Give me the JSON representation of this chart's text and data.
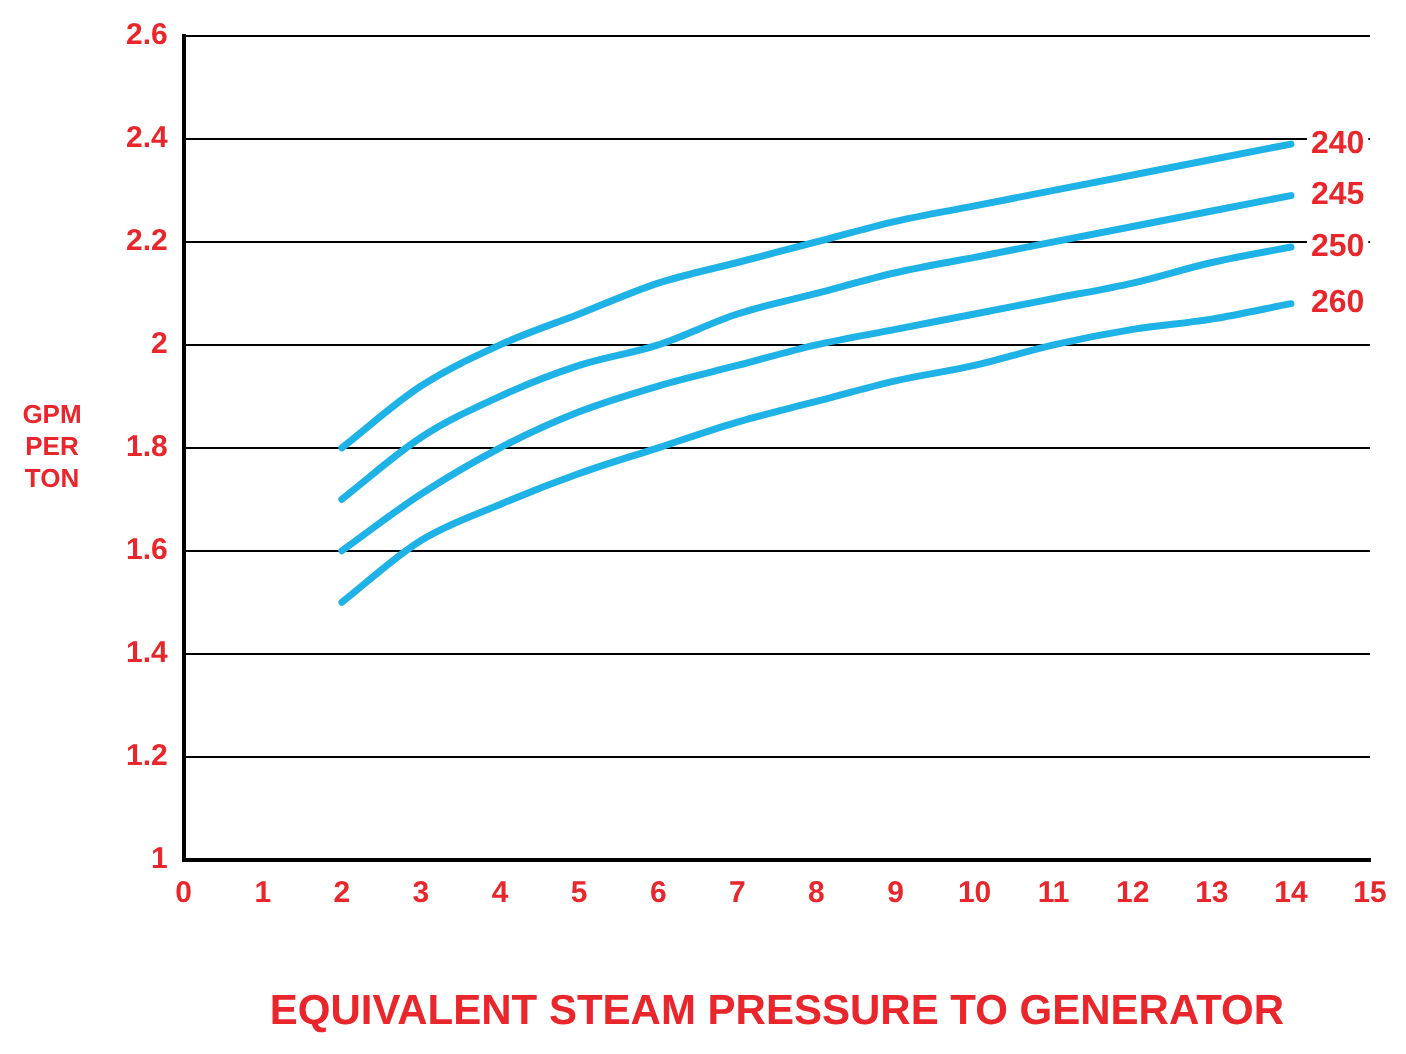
{
  "chart_data": {
    "type": "line",
    "xlabel": "EQUIVALENT STEAM PRESSURE TO GENERATOR",
    "ylabel": "GPM PER TON",
    "xlim": [
      0,
      15
    ],
    "xticks": [
      0,
      1,
      2,
      3,
      4,
      5,
      6,
      7,
      8,
      9,
      10,
      11,
      12,
      13,
      14,
      15
    ],
    "ylim": [
      1,
      2.6
    ],
    "yticks": [
      1,
      1.2,
      1.4,
      1.6,
      1.8,
      2,
      2.2,
      2.4,
      2.6
    ],
    "grid": "y",
    "legend": false,
    "marker": "none",
    "line_style": "solid",
    "x": [
      2,
      3,
      4,
      5,
      6,
      7,
      8,
      9,
      10,
      11,
      12,
      13,
      14
    ],
    "series": [
      {
        "name": "240",
        "color": "#1fb2e6",
        "values": [
          1.8,
          1.92,
          2.0,
          2.06,
          2.12,
          2.16,
          2.2,
          2.24,
          2.27,
          2.3,
          2.33,
          2.36,
          2.39
        ]
      },
      {
        "name": "245",
        "color": "#1fb2e6",
        "values": [
          1.7,
          1.82,
          1.9,
          1.96,
          2.0,
          2.06,
          2.1,
          2.14,
          2.17,
          2.2,
          2.23,
          2.26,
          2.29
        ]
      },
      {
        "name": "250",
        "color": "#1fb2e6",
        "values": [
          1.6,
          1.71,
          1.8,
          1.87,
          1.92,
          1.96,
          2.0,
          2.03,
          2.06,
          2.09,
          2.12,
          2.16,
          2.19
        ]
      },
      {
        "name": "260",
        "color": "#1fb2e6",
        "values": [
          1.5,
          1.62,
          1.69,
          1.75,
          1.8,
          1.85,
          1.89,
          1.93,
          1.96,
          2.0,
          2.03,
          2.05,
          2.08
        ]
      }
    ]
  }
}
